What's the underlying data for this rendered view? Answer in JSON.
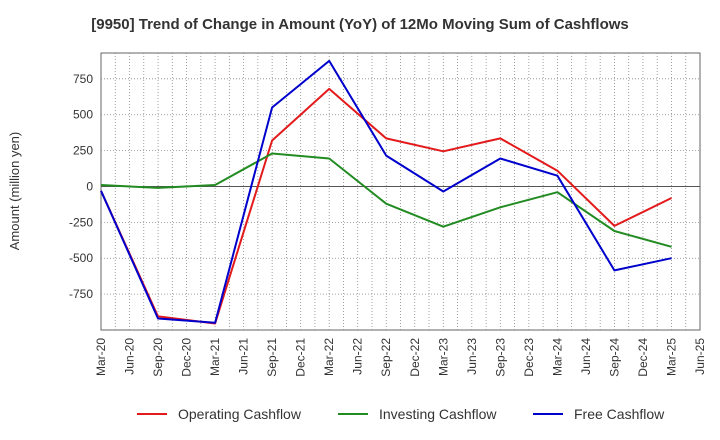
{
  "chart_data": {
    "type": "line",
    "title": "[9950]  Trend of Change in Amount (YoY) of 12Mo Moving Sum of Cashflows",
    "xlabel": "",
    "ylabel": "Amount (million yen)",
    "x": [
      "Mar-20",
      "Jun-20",
      "Sep-20",
      "Dec-20",
      "Mar-21",
      "Jun-21",
      "Sep-21",
      "Dec-21",
      "Mar-22",
      "Jun-22",
      "Sep-22",
      "Dec-22",
      "Mar-23",
      "Jun-23",
      "Sep-23",
      "Dec-23",
      "Mar-24",
      "Jun-24",
      "Sep-24",
      "Dec-24",
      "Mar-25",
      "Jun-25"
    ],
    "yticks": [
      750,
      500,
      250,
      0,
      -250,
      -500,
      -750
    ],
    "ylim": [
      -1000,
      930
    ],
    "grid": true,
    "legend_position": "bottom",
    "series": [
      {
        "name": "Operating Cashflow",
        "color": "#e31a1c",
        "points": [
          {
            "x": "Mar-20",
            "y": -30
          },
          {
            "x": "Sep-20",
            "y": -905
          },
          {
            "x": "Mar-21",
            "y": -955
          },
          {
            "x": "Sep-21",
            "y": 320
          },
          {
            "x": "Mar-22",
            "y": 680
          },
          {
            "x": "Sep-22",
            "y": 335
          },
          {
            "x": "Mar-23",
            "y": 245
          },
          {
            "x": "Sep-23",
            "y": 335
          },
          {
            "x": "Mar-24",
            "y": 110
          },
          {
            "x": "Sep-24",
            "y": -275
          },
          {
            "x": "Mar-25",
            "y": -80
          }
        ]
      },
      {
        "name": "Investing Cashflow",
        "color": "#228b22",
        "points": [
          {
            "x": "Mar-20",
            "y": 10
          },
          {
            "x": "Sep-20",
            "y": -10
          },
          {
            "x": "Mar-21",
            "y": 10
          },
          {
            "x": "Sep-21",
            "y": 230
          },
          {
            "x": "Mar-22",
            "y": 195
          },
          {
            "x": "Sep-22",
            "y": -120
          },
          {
            "x": "Mar-23",
            "y": -280
          },
          {
            "x": "Sep-23",
            "y": -145
          },
          {
            "x": "Mar-24",
            "y": -40
          },
          {
            "x": "Sep-24",
            "y": -310
          },
          {
            "x": "Mar-25",
            "y": -420
          }
        ]
      },
      {
        "name": "Free Cashflow",
        "color": "#0000cd",
        "points": [
          {
            "x": "Mar-20",
            "y": -30
          },
          {
            "x": "Sep-20",
            "y": -920
          },
          {
            "x": "Mar-21",
            "y": -950
          },
          {
            "x": "Sep-21",
            "y": 550
          },
          {
            "x": "Mar-22",
            "y": 875
          },
          {
            "x": "Sep-22",
            "y": 215
          },
          {
            "x": "Mar-23",
            "y": -35
          },
          {
            "x": "Sep-23",
            "y": 195
          },
          {
            "x": "Mar-24",
            "y": 75
          },
          {
            "x": "Sep-24",
            "y": -585
          },
          {
            "x": "Mar-25",
            "y": -500
          }
        ]
      }
    ]
  }
}
